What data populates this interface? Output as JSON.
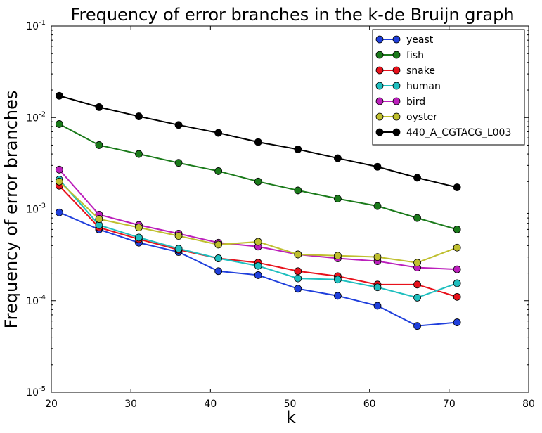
{
  "chart_data": {
    "type": "line",
    "title": "Frequency of error branches in the k-de Bruijn graph",
    "xlabel": "k",
    "ylabel": "Frequency of error branches",
    "xlim": [
      20,
      80
    ],
    "ylim": [
      1e-05,
      0.1
    ],
    "yscale": "log",
    "grid": false,
    "legend_position": "top-right",
    "x_ticks": [
      {
        "value": 20,
        "label": "20"
      },
      {
        "value": 30,
        "label": "30"
      },
      {
        "value": 40,
        "label": "40"
      },
      {
        "value": 50,
        "label": "50"
      },
      {
        "value": 60,
        "label": "60"
      },
      {
        "value": 70,
        "label": "70"
      },
      {
        "value": 80,
        "label": "80"
      }
    ],
    "y_ticks": [
      {
        "value": 1e-05,
        "base": "10",
        "exp": "-5"
      },
      {
        "value": 0.0001,
        "base": "10",
        "exp": "-4"
      },
      {
        "value": 0.001,
        "base": "10",
        "exp": "-3"
      },
      {
        "value": 0.01,
        "base": "10",
        "exp": "-2"
      },
      {
        "value": 0.1,
        "base": "10",
        "exp": "-1"
      }
    ],
    "x": [
      21,
      26,
      31,
      36,
      41,
      46,
      51,
      56,
      61,
      66,
      71
    ],
    "series": [
      {
        "name": "yeast",
        "color": "#1f3fdc",
        "values": [
          0.00092,
          0.0006,
          0.00043,
          0.00034,
          0.00021,
          0.00019,
          0.000135,
          0.000113,
          8.8e-05,
          5.3e-05,
          5.8e-05
        ]
      },
      {
        "name": "fish",
        "color": "#1a7a1a",
        "values": [
          0.0085,
          0.005,
          0.004,
          0.0032,
          0.0026,
          0.002,
          0.0016,
          0.0013,
          0.00108,
          0.0008,
          0.0006
        ]
      },
      {
        "name": "snake",
        "color": "#e8111b",
        "values": [
          0.0018,
          0.00063,
          0.00047,
          0.00036,
          0.00029,
          0.00026,
          0.00021,
          0.000185,
          0.00015,
          0.00015,
          0.00011
        ]
      },
      {
        "name": "human",
        "color": "#1fbfbf",
        "values": [
          0.0021,
          0.00067,
          0.00049,
          0.00037,
          0.00029,
          0.00024,
          0.000175,
          0.00017,
          0.00014,
          0.000108,
          0.000155
        ]
      },
      {
        "name": "bird",
        "color": "#bb1fbb",
        "values": [
          0.0027,
          0.00087,
          0.00067,
          0.00054,
          0.00043,
          0.00039,
          0.00032,
          0.00029,
          0.00027,
          0.00023,
          0.00022
        ]
      },
      {
        "name": "oyster",
        "color": "#bfbf2e",
        "values": [
          0.002,
          0.00078,
          0.00063,
          0.00051,
          0.00041,
          0.00044,
          0.00032,
          0.00031,
          0.0003,
          0.00026,
          0.00038
        ]
      },
      {
        "name": "440_A_CGTACG_L003",
        "color": "#000000",
        "values": [
          0.0173,
          0.013,
          0.0103,
          0.0083,
          0.0068,
          0.0054,
          0.0045,
          0.0036,
          0.0029,
          0.0022,
          0.00173
        ]
      }
    ]
  }
}
